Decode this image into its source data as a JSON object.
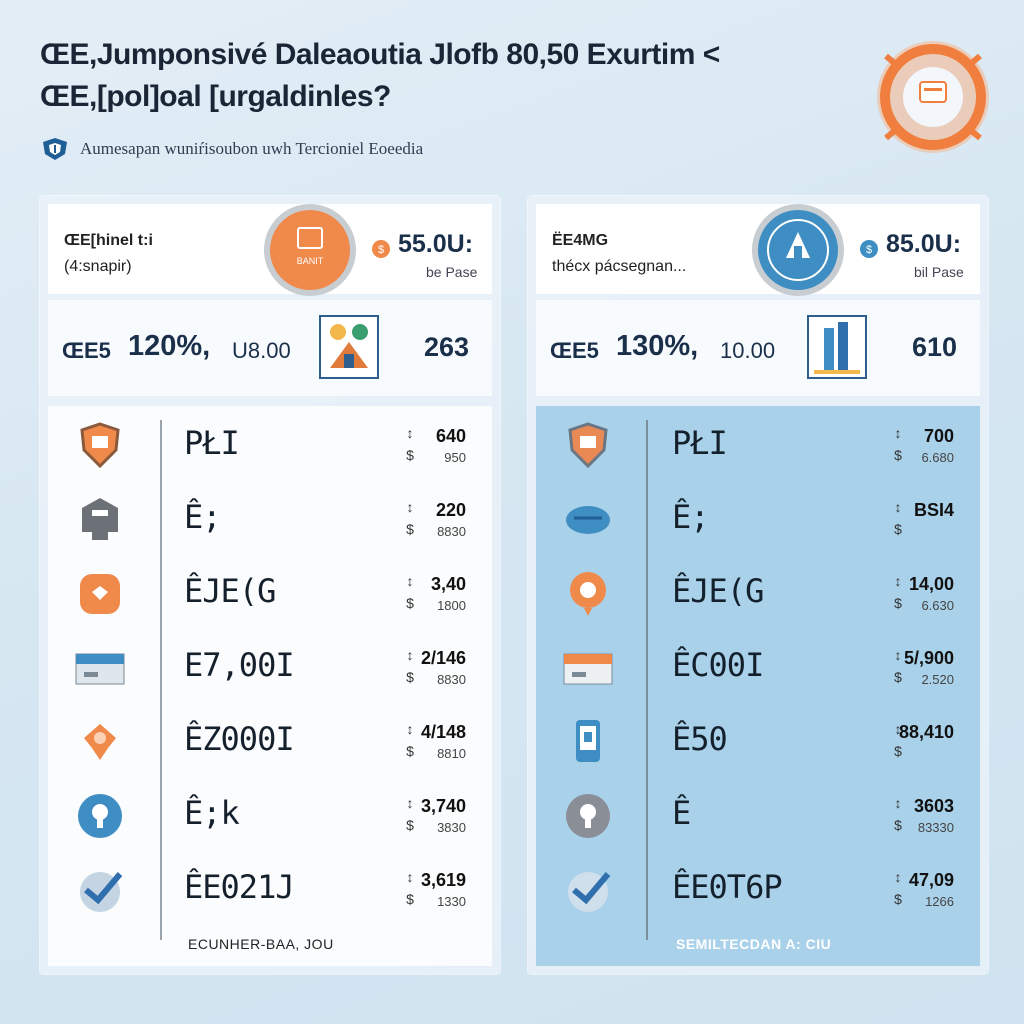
{
  "header": {
    "title_line1": "ŒE,Jumponsivé Daleaoutia Jlofb 80,50 Exurtim <",
    "title_line2": "ŒE,[pol]oal [urgaldinles?",
    "subtitle": "Aumesapan wuniŕisoubon uwh Tercioniel Eoeedia"
  },
  "columns": [
    {
      "plan_name": "ŒE[hinel t:i",
      "plan_sub": "(4:snapir)",
      "medal_text": "BANIT",
      "medal_color": "#f08a4b",
      "price": "55.0U:",
      "per": "be Pase",
      "summary_icon": "ŒE5",
      "summary_pct": "120%,",
      "summary_amount": "U8.00",
      "summary_count": "263",
      "rows": [
        {
          "icon": "shield-icon",
          "label": "PŁI",
          "value": "640",
          "sub": "950"
        },
        {
          "icon": "house-icon",
          "label": "Ê;",
          "value": "220",
          "sub": "8830"
        },
        {
          "icon": "badge-icon",
          "label": "ÊJE(G",
          "value": "3,40",
          "sub": "1800"
        },
        {
          "icon": "card-icon",
          "label": "E7,00I",
          "value": "2/146",
          "sub": "8830"
        },
        {
          "icon": "hand-icon",
          "label": "ÊZ000I",
          "value": "4/148",
          "sub": "8810"
        },
        {
          "icon": "bulb-icon",
          "label": "Ê;k",
          "value": "3,740",
          "sub": "3830"
        },
        {
          "icon": "check-icon",
          "label": "ÊE021J",
          "value": "3,619",
          "sub": "1330"
        }
      ],
      "footer": "ECUNHER-BAA, JOU"
    },
    {
      "plan_name": "ËE4MG",
      "plan_sub": "thécx pácsegnan...",
      "medal_text": "",
      "medal_color": "#3e8ec4",
      "price": "85.0U:",
      "per": "bil Pase",
      "summary_icon": "ŒE5",
      "summary_pct": "130%,",
      "summary_amount": "10.00",
      "summary_count": "610",
      "rows": [
        {
          "icon": "shield-icon",
          "label": "PŁI",
          "value": "700",
          "sub": "6.680"
        },
        {
          "icon": "cloud-icon",
          "label": "Ê;",
          "value": "BSI4",
          "sub": ""
        },
        {
          "icon": "badge-icon",
          "label": "ÊJE(G",
          "value": "14,00",
          "sub": "6.630"
        },
        {
          "icon": "card-icon",
          "label": "ÊC00I",
          "value": "5/,900",
          "sub": "2.520"
        },
        {
          "icon": "phone-icon",
          "label": "Ê50",
          "value": "88,410",
          "sub": ""
        },
        {
          "icon": "bulb-icon",
          "label": "Ê",
          "value": "3603",
          "sub": "83330"
        },
        {
          "icon": "check-icon",
          "label": "ÊE0T6P",
          "value": "47,09",
          "sub": "1266"
        }
      ],
      "footer": "SEMILTECDAN A: CIU"
    }
  ],
  "colors": {
    "accent_orange": "#f08a4b",
    "accent_blue": "#3e8ec4",
    "right_list_bg": "#a9d2ea"
  }
}
